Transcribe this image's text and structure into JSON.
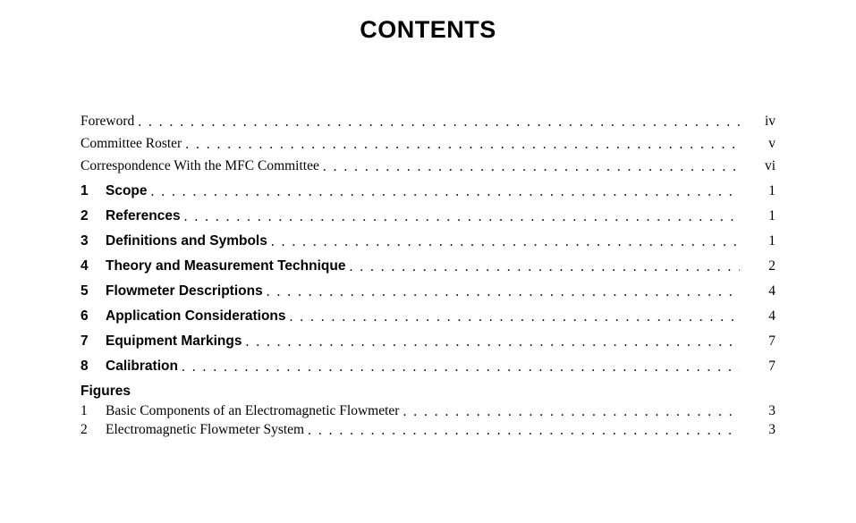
{
  "title": "CONTENTS",
  "title_fontsize": 27,
  "front_matter": [
    {
      "label": "Foreword",
      "page": "iv"
    },
    {
      "label": "Committee Roster",
      "page": "v"
    },
    {
      "label": "Correspondence With the MFC Committee",
      "page": "vi"
    }
  ],
  "sections": [
    {
      "num": "1",
      "label": "Scope",
      "page": "1"
    },
    {
      "num": "2",
      "label": "References",
      "page": "1"
    },
    {
      "num": "3",
      "label": "Definitions and Symbols",
      "page": "1"
    },
    {
      "num": "4",
      "label": "Theory and Measurement Technique",
      "page": "2"
    },
    {
      "num": "5",
      "label": "Flowmeter Descriptions",
      "page": "4"
    },
    {
      "num": "6",
      "label": "Application Considerations",
      "page": "4"
    },
    {
      "num": "7",
      "label": "Equipment Markings",
      "page": "7"
    },
    {
      "num": "8",
      "label": "Calibration",
      "page": "7"
    }
  ],
  "figures_heading": "Figures",
  "figures": [
    {
      "num": "1",
      "label": "Basic Components of an Electromagnetic Flowmeter",
      "page": "3"
    },
    {
      "num": "2",
      "label": "Electromagnetic Flowmeter System",
      "page": "3"
    }
  ],
  "colors": {
    "background": "#ffffff",
    "text": "#000000"
  },
  "body_fontsize": 15.5
}
